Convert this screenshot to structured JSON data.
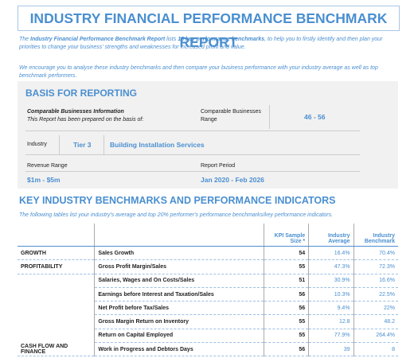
{
  "header": {
    "title": "INDUSTRY FINANCIAL PERFORMANCE BENCHMARK REPORT"
  },
  "intro": {
    "parts": [
      "The ",
      "Industry Financial Performance Benchmark Report",
      " lists ",
      "18 key performance benchmarks",
      ", to help you to firstly identify and then plan your priorities to change your business' strengths and weaknesses for increased profit and value."
    ],
    "paragraph2": "We encourage you to analyse these industry benchmarks and then compare your business performance with your industry average as well as top benchmark performers."
  },
  "basis": {
    "title": "BASIS FOR REPORTING",
    "info_title": "Comparable Businesses Information",
    "info_text": "This Report has been prepared on the basis of:",
    "range_label": "Comparable Businesses Range",
    "range_value": "46 - 56",
    "industry_label": "Industry",
    "tier": "Tier 3",
    "industry": "Building Installation Services",
    "revenue_label": "Revenue Range",
    "revenue_value": "$1m - $5m",
    "period_label": "Report Period",
    "period_value": "Jan 2020 - Feb 2026"
  },
  "benchmarks": {
    "title": "KEY INDUSTRY BENCHMARKS AND PERFORMANCE INDICATORS",
    "subtitle": "The following tables list your industry's average and top 20% performer's performance benchmarks/key performance indicators.",
    "columns": [
      "KPI Sample Size *",
      "Industry Average",
      "Industry Benchmark"
    ],
    "rows": [
      {
        "group": "GROWTH",
        "kpi": "Sales Growth",
        "sample": 54,
        "average": "16.4%",
        "benchmark": "70.4%"
      },
      {
        "group": "PROFITABILITY",
        "kpi": "Gross Profit Margin/Sales",
        "sample": 55,
        "average": "47.3%",
        "benchmark": "72.3%"
      },
      {
        "group": null,
        "kpi": "Salaries, Wages and On Costs/Sales",
        "sample": 51,
        "average": "30.9%",
        "benchmark": "16.6%"
      },
      {
        "group": null,
        "kpi": "Earnings before Interest and Taxation/Sales",
        "sample": 56,
        "average": "10.3%",
        "benchmark": "22.5%"
      },
      {
        "group": null,
        "kpi": "Net Profit before Tax/Sales",
        "sample": 56,
        "average": "9.4%",
        "benchmark": "22%"
      },
      {
        "group": null,
        "kpi": "Gross Margin Return on Inventory",
        "sample": 55,
        "average": "12.8",
        "benchmark": "48.2"
      },
      {
        "group": null,
        "kpi": "Return on Capital Employed",
        "sample": 55,
        "average": "77.9%",
        "benchmark": "264.4%"
      },
      {
        "group": "CASH FLOW AND FINANCE",
        "kpi": "Work in Progress and Debtors Days",
        "sample": 56,
        "average": "39",
        "benchmark": "8"
      }
    ]
  }
}
